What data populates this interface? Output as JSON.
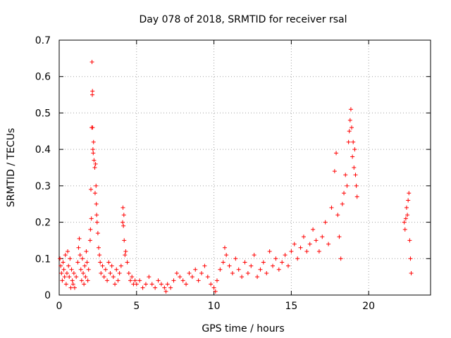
{
  "chart_data": {
    "type": "scatter",
    "title": "Day 078 of 2018, SRMTID for receiver rsal",
    "xlabel": "GPS time / hours",
    "ylabel": "SRMTID / TECUs",
    "xlim": [
      0,
      24
    ],
    "ylim": [
      0,
      0.7
    ],
    "xticks": [
      0,
      5,
      10,
      15,
      20
    ],
    "yticks": [
      0,
      0.1,
      0.2,
      0.3,
      0.4,
      0.5,
      0.6,
      0.7
    ],
    "xtick_labels": [
      "0",
      "5",
      "10",
      "15",
      "20"
    ],
    "ytick_labels": [
      "0",
      "0.1",
      "0.2",
      "0.3",
      "0.4",
      "0.5",
      "0.6",
      "0.7"
    ],
    "grid": true,
    "marker": "+",
    "color": "#ff0000",
    "series": [
      {
        "name": "SRMTID",
        "points": [
          [
            0.05,
            0.1
          ],
          [
            0.1,
            0.08
          ],
          [
            0.15,
            0.06
          ],
          [
            0.2,
            0.04
          ],
          [
            0.25,
            0.09
          ],
          [
            0.3,
            0.07
          ],
          [
            0.35,
            0.05
          ],
          [
            0.4,
            0.11
          ],
          [
            0.45,
            0.03
          ],
          [
            0.5,
            0.06
          ],
          [
            0.55,
            0.12
          ],
          [
            0.6,
            0.08
          ],
          [
            0.65,
            0.05
          ],
          [
            0.7,
            0.1
          ],
          [
            0.75,
            0.02
          ],
          [
            0.8,
            0.07
          ],
          [
            0.85,
            0.04
          ],
          [
            0.9,
            0.03
          ],
          [
            0.95,
            0.06
          ],
          [
            1.0,
            0.02
          ],
          [
            1.1,
            0.05
          ],
          [
            1.2,
            0.09
          ],
          [
            1.25,
            0.13
          ],
          [
            1.3,
            0.155
          ],
          [
            1.35,
            0.11
          ],
          [
            1.4,
            0.07
          ],
          [
            1.45,
            0.04
          ],
          [
            1.5,
            0.1
          ],
          [
            1.55,
            0.06
          ],
          [
            1.6,
            0.03
          ],
          [
            1.65,
            0.08
          ],
          [
            1.7,
            0.05
          ],
          [
            1.75,
            0.12
          ],
          [
            1.8,
            0.09
          ],
          [
            1.85,
            0.04
          ],
          [
            1.9,
            0.07
          ],
          [
            2.0,
            0.15
          ],
          [
            2.02,
            0.18
          ],
          [
            2.05,
            0.29
          ],
          [
            2.08,
            0.21
          ],
          [
            2.1,
            0.46
          ],
          [
            2.12,
            0.64
          ],
          [
            2.14,
            0.55
          ],
          [
            2.15,
            0.56
          ],
          [
            2.16,
            0.46
          ],
          [
            2.18,
            0.4
          ],
          [
            2.2,
            0.39
          ],
          [
            2.22,
            0.42
          ],
          [
            2.25,
            0.37
          ],
          [
            2.3,
            0.35
          ],
          [
            2.32,
            0.28
          ],
          [
            2.35,
            0.36
          ],
          [
            2.38,
            0.3
          ],
          [
            2.4,
            0.25
          ],
          [
            2.42,
            0.22
          ],
          [
            2.45,
            0.2
          ],
          [
            2.5,
            0.17
          ],
          [
            2.55,
            0.13
          ],
          [
            2.6,
            0.11
          ],
          [
            2.65,
            0.09
          ],
          [
            2.7,
            0.06
          ],
          [
            2.8,
            0.08
          ],
          [
            2.9,
            0.05
          ],
          [
            3.0,
            0.07
          ],
          [
            3.1,
            0.04
          ],
          [
            3.2,
            0.09
          ],
          [
            3.3,
            0.06
          ],
          [
            3.4,
            0.08
          ],
          [
            3.5,
            0.05
          ],
          [
            3.6,
            0.03
          ],
          [
            3.7,
            0.07
          ],
          [
            3.8,
            0.04
          ],
          [
            3.9,
            0.06
          ],
          [
            4.0,
            0.08
          ],
          [
            4.1,
            0.2
          ],
          [
            4.12,
            0.24
          ],
          [
            4.15,
            0.19
          ],
          [
            4.18,
            0.22
          ],
          [
            4.2,
            0.15
          ],
          [
            4.25,
            0.11
          ],
          [
            4.3,
            0.12
          ],
          [
            4.4,
            0.09
          ],
          [
            4.5,
            0.06
          ],
          [
            4.6,
            0.04
          ],
          [
            4.7,
            0.05
          ],
          [
            4.8,
            0.03
          ],
          [
            4.9,
            0.04
          ],
          [
            5.0,
            0.03
          ],
          [
            5.2,
            0.04
          ],
          [
            5.4,
            0.02
          ],
          [
            5.6,
            0.03
          ],
          [
            5.8,
            0.05
          ],
          [
            6.0,
            0.03
          ],
          [
            6.2,
            0.02
          ],
          [
            6.4,
            0.04
          ],
          [
            6.6,
            0.03
          ],
          [
            6.8,
            0.02
          ],
          [
            6.9,
            0.01
          ],
          [
            7.0,
            0.03
          ],
          [
            7.2,
            0.02
          ],
          [
            7.4,
            0.04
          ],
          [
            7.6,
            0.06
          ],
          [
            7.8,
            0.05
          ],
          [
            8.0,
            0.04
          ],
          [
            8.2,
            0.03
          ],
          [
            8.4,
            0.06
          ],
          [
            8.6,
            0.05
          ],
          [
            8.8,
            0.07
          ],
          [
            9.0,
            0.04
          ],
          [
            9.2,
            0.06
          ],
          [
            9.4,
            0.08
          ],
          [
            9.6,
            0.05
          ],
          [
            9.8,
            0.03
          ],
          [
            10.0,
            0.02
          ],
          [
            10.1,
            0.01
          ],
          [
            10.2,
            0.04
          ],
          [
            10.4,
            0.07
          ],
          [
            10.6,
            0.09
          ],
          [
            10.7,
            0.13
          ],
          [
            10.8,
            0.11
          ],
          [
            11.0,
            0.08
          ],
          [
            11.2,
            0.06
          ],
          [
            11.4,
            0.1
          ],
          [
            11.6,
            0.07
          ],
          [
            11.8,
            0.05
          ],
          [
            12.0,
            0.09
          ],
          [
            12.2,
            0.06
          ],
          [
            12.4,
            0.08
          ],
          [
            12.6,
            0.11
          ],
          [
            12.8,
            0.05
          ],
          [
            13.0,
            0.07
          ],
          [
            13.2,
            0.09
          ],
          [
            13.4,
            0.06
          ],
          [
            13.6,
            0.12
          ],
          [
            13.8,
            0.08
          ],
          [
            14.0,
            0.1
          ],
          [
            14.2,
            0.07
          ],
          [
            14.4,
            0.09
          ],
          [
            14.6,
            0.11
          ],
          [
            14.8,
            0.08
          ],
          [
            15.0,
            0.12
          ],
          [
            15.2,
            0.14
          ],
          [
            15.4,
            0.1
          ],
          [
            15.6,
            0.13
          ],
          [
            15.8,
            0.16
          ],
          [
            16.0,
            0.12
          ],
          [
            16.2,
            0.14
          ],
          [
            16.4,
            0.18
          ],
          [
            16.6,
            0.15
          ],
          [
            16.8,
            0.12
          ],
          [
            17.0,
            0.16
          ],
          [
            17.2,
            0.2
          ],
          [
            17.4,
            0.14
          ],
          [
            17.6,
            0.24
          ],
          [
            17.8,
            0.34
          ],
          [
            17.9,
            0.39
          ],
          [
            18.0,
            0.22
          ],
          [
            18.1,
            0.16
          ],
          [
            18.2,
            0.1
          ],
          [
            18.3,
            0.25
          ],
          [
            18.4,
            0.28
          ],
          [
            18.5,
            0.33
          ],
          [
            18.6,
            0.3
          ],
          [
            18.7,
            0.42
          ],
          [
            18.75,
            0.45
          ],
          [
            18.8,
            0.48
          ],
          [
            18.85,
            0.51
          ],
          [
            18.9,
            0.46
          ],
          [
            18.95,
            0.38
          ],
          [
            19.0,
            0.42
          ],
          [
            19.05,
            0.35
          ],
          [
            19.1,
            0.4
          ],
          [
            19.15,
            0.33
          ],
          [
            19.2,
            0.3
          ],
          [
            19.25,
            0.27
          ],
          [
            22.3,
            0.2
          ],
          [
            22.35,
            0.18
          ],
          [
            22.4,
            0.21
          ],
          [
            22.45,
            0.24
          ],
          [
            22.5,
            0.22
          ],
          [
            22.55,
            0.26
          ],
          [
            22.6,
            0.28
          ],
          [
            22.65,
            0.15
          ],
          [
            22.7,
            0.1
          ],
          [
            22.75,
            0.06
          ]
        ]
      }
    ]
  }
}
